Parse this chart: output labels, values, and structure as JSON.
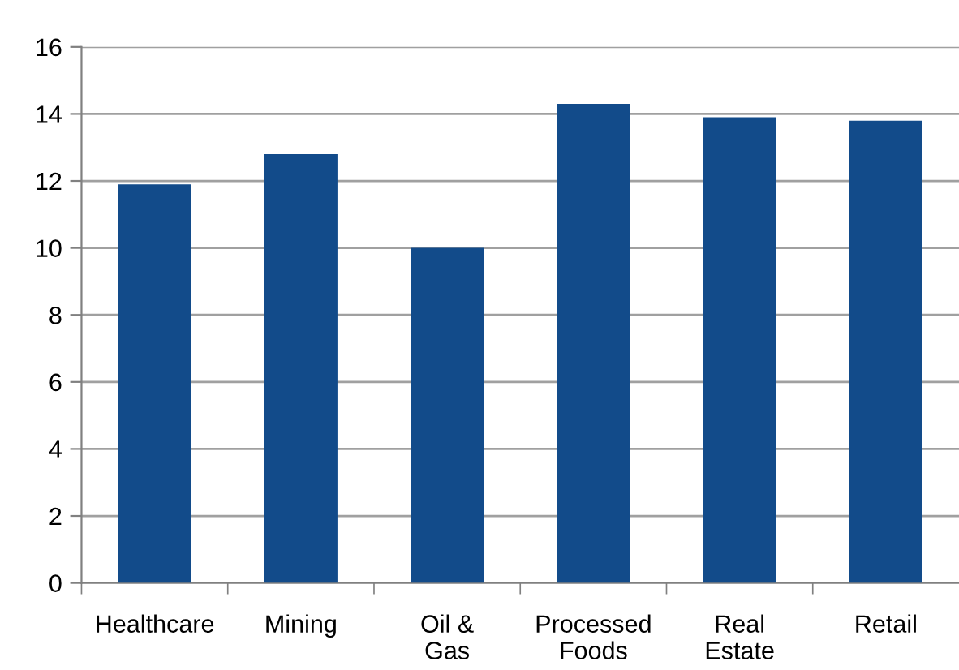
{
  "chart_data": {
    "type": "bar",
    "categories": [
      "Healthcare",
      "Mining",
      "Oil &\nGas",
      "Processed\nFoods",
      "Real\nEstate",
      "Retail"
    ],
    "values": [
      11.9,
      12.8,
      10.0,
      14.3,
      13.9,
      13.8
    ],
    "color": "#124b8a",
    "ylim": [
      0,
      16
    ],
    "yticks": [
      0,
      2,
      4,
      6,
      8,
      10,
      12,
      14,
      16
    ],
    "grid": "y",
    "legend": false
  }
}
